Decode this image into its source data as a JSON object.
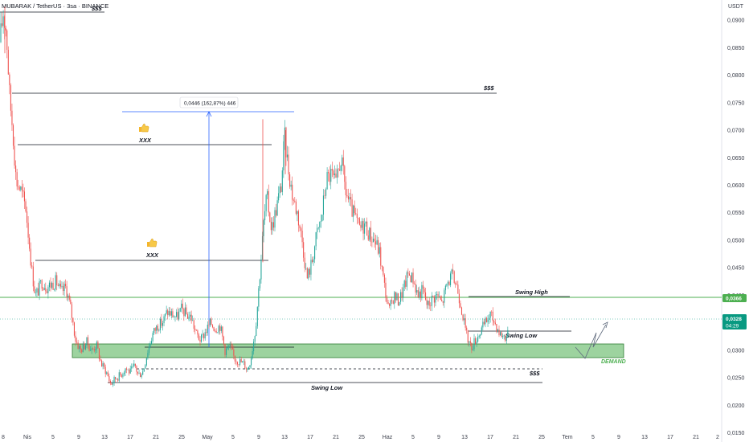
{
  "header": {
    "title": "MUBARAK / TetherUS · 3sa · BINANCE",
    "quote_currency": "USDT"
  },
  "price_tags": {
    "swing_high_price": "0,0366",
    "last_price": "0,0328",
    "countdown": "04:29"
  },
  "measure_label": "0,0446 (162,87%) 446",
  "annotations": {
    "xxx_upper": "XXX",
    "xxx_lower": "XXX",
    "liq_top": "$$$",
    "liq_mid": "$$$",
    "liq_bottom": "$$$",
    "swing_high": "Swing High",
    "swing_low_right": "Swing Low",
    "swing_low_bottom": "Swing Low",
    "demand": "DEMAND",
    "thumb_icon_upper": "thumbs-up-icon",
    "thumb_icon_lower": "thumbs-up-icon"
  },
  "colors": {
    "up": "#26a69a",
    "down": "#ef5350",
    "demand_zone": "#4caf50",
    "swing_high_line": "#4caf50",
    "measure_line": "#2962ff",
    "last_price_tag": "#089981"
  },
  "chart_data": {
    "type": "candlestick",
    "symbol": "MUBARAK / TetherUS",
    "timeframe": "3sa",
    "exchange": "BINANCE",
    "y_axis_ticks": [
      "0,0150",
      "0,0200",
      "0,0250",
      "0,0300",
      "0,0350",
      "0,0400",
      "0,0450",
      "0,0500",
      "0,0550",
      "0,0600",
      "0,0650",
      "0,0700",
      "0,0750",
      "0,0800",
      "0,0850",
      "0,0900"
    ],
    "x_axis_ticks": [
      "8",
      "Nis",
      "5",
      "9",
      "13",
      "17",
      "21",
      "25",
      "May",
      "5",
      "9",
      "13",
      "17",
      "21",
      "25",
      "Haz",
      "5",
      "9",
      "13",
      "17",
      "21",
      "25",
      "Tem",
      "5",
      "9",
      "13",
      "17",
      "21",
      "2"
    ],
    "ylim": [
      0.0145,
      0.0925
    ],
    "close_path": [
      [
        0,
        0.086
      ],
      [
        4,
        0.0915
      ],
      [
        8,
        0.088
      ],
      [
        12,
        0.076
      ],
      [
        16,
        0.07
      ],
      [
        20,
        0.061
      ],
      [
        26,
        0.059
      ],
      [
        32,
        0.056
      ],
      [
        36,
        0.05
      ],
      [
        40,
        0.044
      ],
      [
        44,
        0.04
      ],
      [
        48,
        0.041
      ],
      [
        52,
        0.0425
      ],
      [
        58,
        0.0415
      ],
      [
        64,
        0.042
      ],
      [
        70,
        0.0425
      ],
      [
        76,
        0.0405
      ],
      [
        82,
        0.0415
      ],
      [
        88,
        0.0375
      ],
      [
        94,
        0.032
      ],
      [
        100,
        0.03
      ],
      [
        108,
        0.0315
      ],
      [
        114,
        0.03
      ],
      [
        120,
        0.031
      ],
      [
        126,
        0.0275
      ],
      [
        132,
        0.0262
      ],
      [
        138,
        0.0238
      ],
      [
        144,
        0.025
      ],
      [
        150,
        0.0255
      ],
      [
        156,
        0.0268
      ],
      [
        162,
        0.026
      ],
      [
        168,
        0.0272
      ],
      [
        172,
        0.0255
      ],
      [
        178,
        0.0262
      ],
      [
        184,
        0.03
      ],
      [
        190,
        0.033
      ],
      [
        196,
        0.0345
      ],
      [
        202,
        0.035
      ],
      [
        208,
        0.037
      ],
      [
        214,
        0.0365
      ],
      [
        220,
        0.036
      ],
      [
        226,
        0.0375
      ],
      [
        232,
        0.0365
      ],
      [
        238,
        0.036
      ],
      [
        244,
        0.033
      ],
      [
        250,
        0.0318
      ],
      [
        256,
        0.0335
      ],
      [
        262,
        0.035
      ],
      [
        268,
        0.034
      ],
      [
        274,
        0.0345
      ],
      [
        280,
        0.03
      ],
      [
        286,
        0.0305
      ],
      [
        292,
        0.0285
      ],
      [
        298,
        0.028
      ],
      [
        304,
        0.0275
      ],
      [
        308,
        0.0265
      ],
      [
        312,
        0.0285
      ],
      [
        318,
        0.034
      ],
      [
        324,
        0.045
      ],
      [
        328,
        0.053
      ],
      [
        332,
        0.058
      ],
      [
        338,
        0.052
      ],
      [
        344,
        0.056
      ],
      [
        350,
        0.06
      ],
      [
        354,
        0.069
      ],
      [
        358,
        0.064
      ],
      [
        364,
        0.058
      ],
      [
        370,
        0.055
      ],
      [
        376,
        0.05
      ],
      [
        382,
        0.043
      ],
      [
        388,
        0.046
      ],
      [
        394,
        0.051
      ],
      [
        400,
        0.054
      ],
      [
        406,
        0.061
      ],
      [
        412,
        0.062
      ],
      [
        418,
        0.06
      ],
      [
        424,
        0.065
      ],
      [
        430,
        0.059
      ],
      [
        436,
        0.056
      ],
      [
        442,
        0.054
      ],
      [
        448,
        0.052
      ],
      [
        454,
        0.053
      ],
      [
        460,
        0.051
      ],
      [
        466,
        0.05
      ],
      [
        472,
        0.048
      ],
      [
        478,
        0.042
      ],
      [
        484,
        0.037
      ],
      [
        490,
        0.04
      ],
      [
        496,
        0.039
      ],
      [
        502,
        0.041
      ],
      [
        508,
        0.044
      ],
      [
        514,
        0.043
      ],
      [
        520,
        0.04
      ],
      [
        526,
        0.041
      ],
      [
        532,
        0.038
      ],
      [
        538,
        0.0395
      ],
      [
        544,
        0.04
      ],
      [
        550,
        0.0385
      ],
      [
        556,
        0.042
      ],
      [
        562,
        0.0435
      ],
      [
        568,
        0.042
      ],
      [
        574,
        0.038
      ],
      [
        580,
        0.033
      ],
      [
        586,
        0.0305
      ],
      [
        592,
        0.032
      ],
      [
        598,
        0.0335
      ],
      [
        604,
        0.035
      ],
      [
        610,
        0.0365
      ],
      [
        616,
        0.035
      ],
      [
        622,
        0.033
      ],
      [
        628,
        0.0325
      ],
      [
        632,
        0.0328
      ]
    ]
  }
}
